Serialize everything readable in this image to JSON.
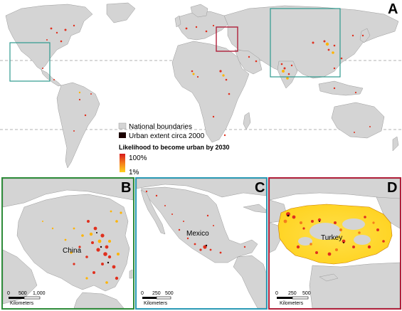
{
  "panels": {
    "a": {
      "letter": "A"
    },
    "b": {
      "letter": "B",
      "country": "China",
      "scale_ticks": [
        "0",
        "500",
        "1,000"
      ],
      "scale_unit": "Kilometers"
    },
    "c": {
      "letter": "C",
      "country": "Mexico",
      "scale_ticks": [
        "0",
        "250",
        "500"
      ],
      "scale_unit": "Kilometers"
    },
    "d": {
      "letter": "D",
      "country": "Turkey",
      "scale_ticks": [
        "0",
        "250",
        "500"
      ],
      "scale_unit": "Kilometers"
    }
  },
  "legend": {
    "national_boundaries": "National boundaries",
    "urban_extent": "Urban extent circa 2000",
    "likelihood_title": "Likelihood to become urban by 2030",
    "high": "100%",
    "low": "1%"
  },
  "colors": {
    "ocean": "#ffffff",
    "land": "#d4d4d4",
    "boundary": "#9a9a9a",
    "teal_frame": "#2e9a8e",
    "green_frame": "#2e8b3a",
    "blue_frame": "#2a9ab5",
    "red_frame": "#b0203a",
    "urban": "#1a0000",
    "high": "#d7191c",
    "low": "#ffd21e"
  }
}
